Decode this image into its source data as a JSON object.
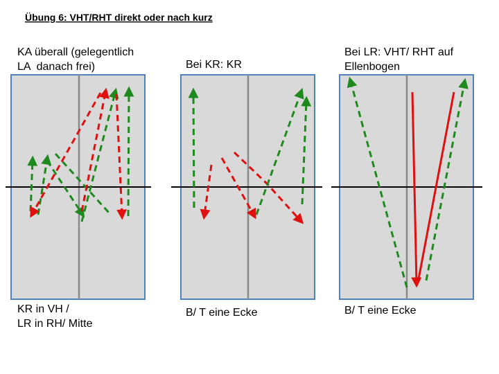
{
  "title": "Übung 6: VHT/RHT direkt oder nach kurz",
  "panels": [
    {
      "top": [
        "KA überall (gelegentlich",
        "LA  danach frei)"
      ],
      "bottom": [
        "KR in VH /",
        "LR in RH/ Mitte"
      ]
    },
    {
      "top": [
        "Bei KR: KR"
      ],
      "bottom": [
        "B/ T eine Ecke"
      ]
    },
    {
      "top": [
        "Bei LR: VHT/ RHT auf",
        "Ellenbogen"
      ],
      "bottom": [
        "B/ T eine Ecke"
      ]
    }
  ]
}
